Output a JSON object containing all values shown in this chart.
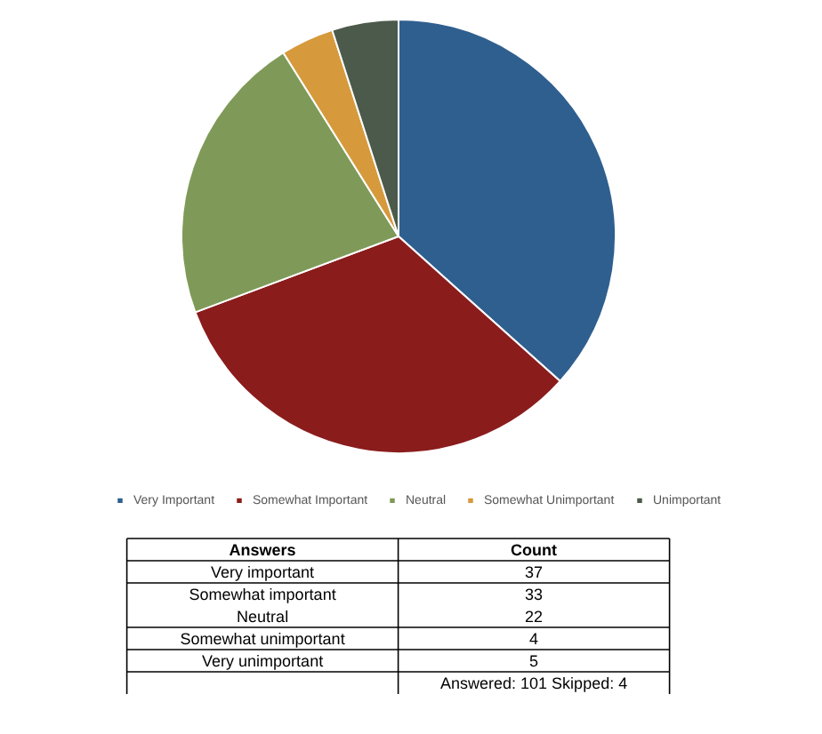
{
  "chart_data": {
    "type": "pie",
    "categories": [
      "Very Important",
      "Somewhat Important",
      "Neutral",
      "Somewhat Unimportant",
      "Unimportant"
    ],
    "values": [
      37,
      33,
      22,
      4,
      5
    ],
    "colors": [
      "#2f5f8f",
      "#8b1c1c",
      "#7f9a58",
      "#d69a3c",
      "#4b5a4a"
    ],
    "legend": "bottom",
    "annotations": [
      "Answers",
      "Count",
      "Very important",
      "37",
      "Somewhat important",
      "33",
      "Neutral",
      "22",
      "Somewhat unimportant",
      "4",
      "Very unimportant",
      "5",
      "Answered: 101  Skipped: 4"
    ]
  }
}
